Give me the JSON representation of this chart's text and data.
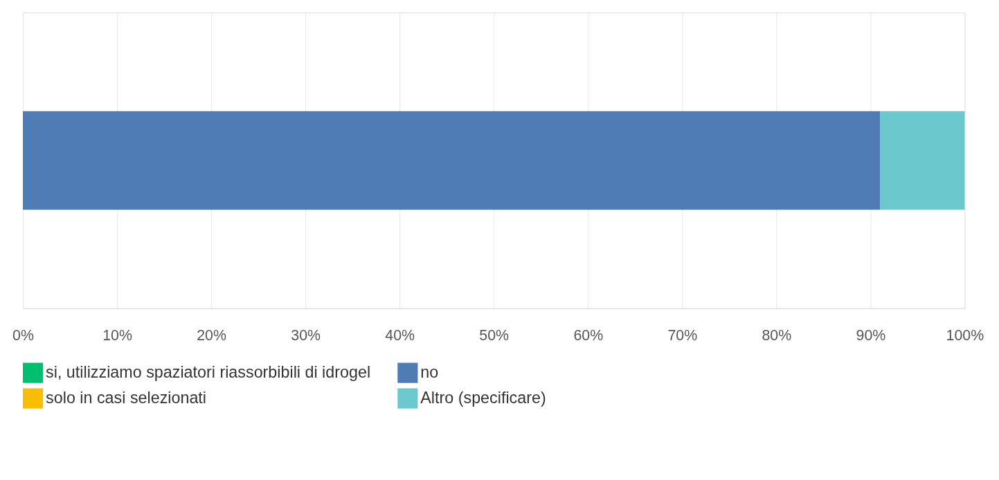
{
  "chart_data": {
    "type": "bar",
    "orientation": "horizontal",
    "stacked": true,
    "categories": [
      null
    ],
    "series": [
      {
        "name": "si, utilizziamo spaziatori riassorbibili di idrogel",
        "color": "#00bf6f",
        "values": [
          0
        ]
      },
      {
        "name": "no",
        "color": "#507cb6",
        "values": [
          91
        ]
      },
      {
        "name": "solo in casi selezionati",
        "color": "#f9be00",
        "values": [
          0
        ]
      },
      {
        "name": "Altro (specificare)",
        "color": "#6bc8cd",
        "values": [
          9
        ]
      }
    ],
    "xlim": [
      0,
      100
    ],
    "xticks": [
      {
        "value": 0,
        "label": "0%"
      },
      {
        "value": 10,
        "label": "10%"
      },
      {
        "value": 20,
        "label": "20%"
      },
      {
        "value": 30,
        "label": "30%"
      },
      {
        "value": 40,
        "label": "40%"
      },
      {
        "value": 50,
        "label": "50%"
      },
      {
        "value": 60,
        "label": "60%"
      },
      {
        "value": 70,
        "label": "70%"
      },
      {
        "value": 80,
        "label": "80%"
      },
      {
        "value": 90,
        "label": "90%"
      },
      {
        "value": 100,
        "label": "100%"
      }
    ],
    "grid": "x",
    "legend": "bottom"
  }
}
